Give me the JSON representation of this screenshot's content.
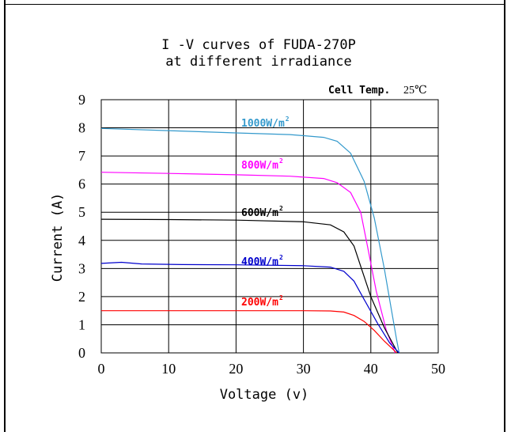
{
  "chart_data": {
    "type": "line",
    "title_line1": "I -V curves of FUDA-270P",
    "title_line2": "at different irradiance",
    "note_label": "Cell Temp.",
    "note_value": "25℃",
    "xlabel": "Voltage (v)",
    "ylabel": "Current (A)",
    "xlim": [
      0,
      50
    ],
    "ylim": [
      0,
      9
    ],
    "xticks": [
      "0",
      "10",
      "20",
      "30",
      "40",
      "50"
    ],
    "yticks": [
      "0",
      "1",
      "2",
      "3",
      "4",
      "5",
      "6",
      "7",
      "8",
      "9"
    ],
    "grid": true,
    "series": [
      {
        "name": "1000W/m²",
        "label_text": "1000W/m",
        "label_sup": "2",
        "color": "#3399cc",
        "points": [
          [
            0,
            7.98
          ],
          [
            10,
            7.9
          ],
          [
            20,
            7.82
          ],
          [
            28,
            7.76
          ],
          [
            33,
            7.66
          ],
          [
            35,
            7.52
          ],
          [
            37,
            7.1
          ],
          [
            39,
            6.1
          ],
          [
            40.5,
            4.8
          ],
          [
            42,
            3.0
          ],
          [
            43,
            1.6
          ],
          [
            43.8,
            0.5
          ],
          [
            44.2,
            0
          ]
        ]
      },
      {
        "name": "800W/m²",
        "label_text": "800W/m",
        "label_sup": "2",
        "color": "#ff00ff",
        "points": [
          [
            0,
            6.42
          ],
          [
            10,
            6.38
          ],
          [
            20,
            6.33
          ],
          [
            28,
            6.28
          ],
          [
            33,
            6.2
          ],
          [
            35,
            6.05
          ],
          [
            37,
            5.7
          ],
          [
            38.5,
            5.0
          ],
          [
            39.5,
            3.8
          ],
          [
            40.8,
            2.2
          ],
          [
            42.3,
            0.8
          ],
          [
            43.6,
            0
          ]
        ]
      },
      {
        "name": "600W/m²",
        "label_text": "600W/m",
        "label_sup": "2",
        "color": "#000000",
        "points": [
          [
            0,
            4.75
          ],
          [
            10,
            4.74
          ],
          [
            20,
            4.72
          ],
          [
            30,
            4.66
          ],
          [
            34,
            4.55
          ],
          [
            36,
            4.3
          ],
          [
            37.5,
            3.8
          ],
          [
            38.6,
            3.0
          ],
          [
            40,
            2.0
          ],
          [
            42,
            0.9
          ],
          [
            44,
            0
          ]
        ]
      },
      {
        "name": "400W/m²",
        "label_text": "400W/m",
        "label_sup": "2",
        "color": "#0000cc",
        "points": [
          [
            0,
            3.18
          ],
          [
            3,
            3.22
          ],
          [
            6,
            3.16
          ],
          [
            12,
            3.14
          ],
          [
            20,
            3.13
          ],
          [
            30,
            3.1
          ],
          [
            34,
            3.05
          ],
          [
            36,
            2.9
          ],
          [
            37.5,
            2.55
          ],
          [
            39,
            1.9
          ],
          [
            41,
            1.05
          ],
          [
            42.8,
            0.35
          ],
          [
            44.2,
            0
          ]
        ]
      },
      {
        "name": "200W/m²",
        "label_text": "200W/m",
        "label_sup": "2",
        "color": "#ff0000",
        "points": [
          [
            0,
            1.5
          ],
          [
            10,
            1.5
          ],
          [
            20,
            1.5
          ],
          [
            30,
            1.5
          ],
          [
            34,
            1.49
          ],
          [
            36,
            1.45
          ],
          [
            37.5,
            1.33
          ],
          [
            39,
            1.12
          ],
          [
            40.5,
            0.8
          ],
          [
            42,
            0.42
          ],
          [
            43.4,
            0.1
          ],
          [
            43.8,
            0
          ]
        ]
      }
    ]
  }
}
